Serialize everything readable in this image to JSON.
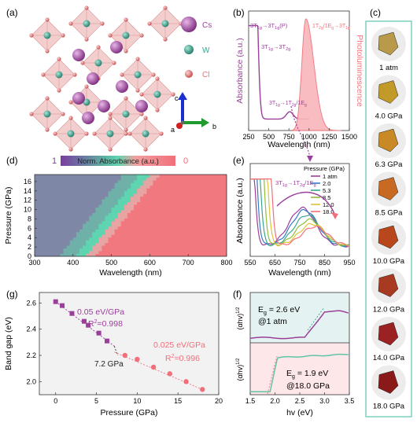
{
  "labels": {
    "a": "(a)",
    "b": "(b)",
    "c": "(c)",
    "d": "(d)",
    "e": "(e)",
    "f": "(f)",
    "g": "(g)"
  },
  "panel_a": {
    "legend": [
      {
        "name": "Cs",
        "color": "#9b3f9b"
      },
      {
        "name": "W",
        "color": "#3aa58f"
      },
      {
        "name": "Cl",
        "color": "#e07a7a"
      }
    ],
    "axes": [
      "a",
      "b",
      "c"
    ]
  },
  "panel_b": {
    "xlabel": "Wavelength (nm)",
    "ylabel_left": "Absorbance (a.u.)",
    "ylabel_right": "Photoluminescence",
    "xticks": [
      "250",
      "500",
      "750",
      "1000",
      "1250",
      "1500"
    ],
    "xlim": [
      250,
      1500
    ],
    "abs_color": "#9b3f9b",
    "pl_color": "#f26f7a",
    "ann1_main": "3T",
    "ann1_sub": "1g",
    "ann1_arrow": "→",
    "ann1_main2": "3T",
    "ann1_sub2": "1g",
    "ann1_tail": "(P)",
    "ann2_main": "3T",
    "ann2_sub": "1g",
    "ann2_arrow": "→",
    "ann2_main2": "3T",
    "ann2_sub2": "2g",
    "ann3_main": "3T",
    "ann3_sub": "1g",
    "ann3_arrow": "→",
    "ann3_main2": "1T",
    "ann3_sub2": "2g",
    "ann3_mid": "/",
    "ann3_main3": "1E",
    "ann3_sub3": "g",
    "ann4_main": "1T",
    "ann4_sub": "2g",
    "ann4_mid": "/",
    "ann4_main2": "1E",
    "ann4_sub2": "g",
    "ann4_arrow": "→",
    "ann4_main3": "3T",
    "ann4_sub3": "1g"
  },
  "panel_c": {
    "samples": [
      {
        "label": "1 atm",
        "color": "#b89a4a"
      },
      {
        "label": "4.0 GPa",
        "color": "#c29a2a"
      },
      {
        "label": "6.3 GPa",
        "color": "#c98a26"
      },
      {
        "label": "8.5 GPa",
        "color": "#c96a24"
      },
      {
        "label": "10.0 GPa",
        "color": "#b8481c"
      },
      {
        "label": "12.0 GPa",
        "color": "#a83a22"
      },
      {
        "label": "14.0 GPa",
        "color": "#9a2222"
      },
      {
        "label": "18.0 GPa",
        "color": "#8a1a1a"
      }
    ]
  },
  "panel_d": {
    "colorbar_label": "Norm. Absorbance (a.u.)",
    "cb_min": "0",
    "cb_max": "1",
    "xlabel": "Wavelength (nm)",
    "ylabel": "Pressure (GPa)",
    "xticks": [
      "300",
      "400",
      "500",
      "600",
      "700",
      "800"
    ],
    "yticks": [
      "0",
      "2",
      "4",
      "6",
      "8",
      "10",
      "12",
      "14",
      "16"
    ],
    "xlim": [
      300,
      800
    ],
    "ylim": [
      0,
      17.5
    ]
  },
  "panel_e": {
    "xlabel": "Wavelength (nm)",
    "ylabel": "Absorbance (a.u.)",
    "xticks": [
      "550",
      "650",
      "750",
      "850",
      "950"
    ],
    "legend_title": "Pressure (GPa)",
    "series": [
      {
        "name": "1 atm",
        "color": "#9b3f9b"
      },
      {
        "name": "2.0",
        "color": "#3a78c4"
      },
      {
        "name": "5.3",
        "color": "#3aa58f"
      },
      {
        "name": "8.5",
        "color": "#8fbf3a"
      },
      {
        "name": "12.0",
        "color": "#e0c23a"
      },
      {
        "name": "18.0",
        "color": "#f26f7a"
      }
    ],
    "ann_main": "3T",
    "ann_sub": "1g",
    "ann_arrow": "→",
    "ann_main2": "1T",
    "ann_sub2": "2g",
    "ann_mid": "/",
    "ann_main3": "1E",
    "ann_sub3": "g"
  },
  "panel_f": {
    "xlabel": "hv (eV)",
    "ylabel": "(αhv)",
    "ylabel_sup": "1/2",
    "xticks": [
      "1.5",
      "2.0",
      "2.5",
      "3.0",
      "3.5"
    ],
    "top_eg": "E",
    "top_eg_sub": "g",
    "top_eg_val": " = 2.6 eV",
    "top_cond": "@1 atm",
    "bot_eg": "E",
    "bot_eg_sub": "g",
    "bot_eg_val": " = 1.9 eV",
    "bot_cond": "@18.0 GPa"
  },
  "panel_g": {
    "xlabel": "Pressure (GPa)",
    "ylabel": "Band gap (eV)",
    "xticks": [
      "0",
      "5",
      "10",
      "15",
      "20"
    ],
    "yticks": [
      "2.0",
      "2.2",
      "2.4",
      "2.6"
    ],
    "xlim": [
      -2,
      20
    ],
    "ylim": [
      1.9,
      2.68
    ],
    "slope1": "0.05 eV/GPa",
    "r2_1": "R",
    "r2_1_sup": "2",
    "r2_1_val": "=0.998",
    "slope2": "0.025 eV/GPa",
    "r2_2": "R",
    "r2_2_sup": "2",
    "r2_2_val": "=0.996",
    "transition": "7.2 GPa",
    "low_color": "#9b3f9b",
    "high_color": "#f26f7a"
  },
  "chart_data": [
    {
      "type": "line",
      "title": "",
      "xlabel": "Pressure (GPa)",
      "ylabel": "Band gap (eV)",
      "xlim": [
        -2,
        20
      ],
      "ylim": [
        1.9,
        2.68
      ],
      "series": [
        {
          "values": [
            [
              0,
              2.61
            ],
            [
              0.8,
              2.58
            ],
            [
              2.0,
              2.52
            ],
            [
              3.5,
              2.46
            ],
            [
              4.0,
              2.43
            ],
            [
              5.3,
              2.37
            ],
            [
              6.3,
              2.31
            ]
          ]
        },
        {
          "values": [
            [
              8.5,
              2.2
            ],
            [
              10.0,
              2.17
            ],
            [
              12.0,
              2.11
            ],
            [
              14.0,
              2.06
            ],
            [
              16.0,
              2.0
            ],
            [
              18.0,
              1.94
            ]
          ]
        }
      ]
    }
  ]
}
